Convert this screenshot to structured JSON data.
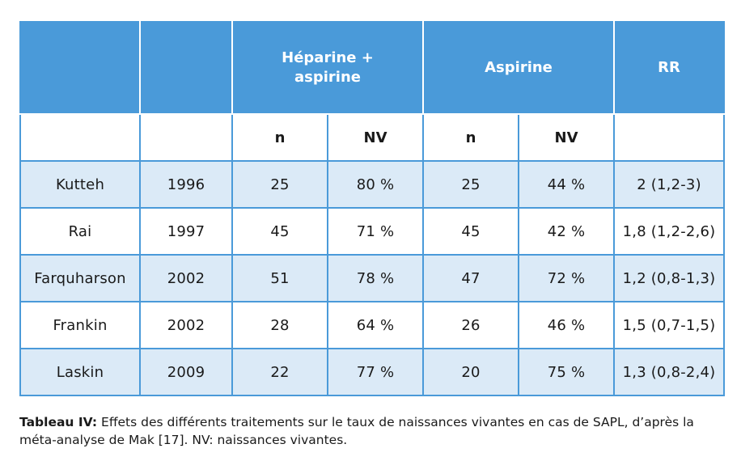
{
  "table": {
    "group_headers": [
      "",
      "",
      "Héparine +\naspirine",
      "Aspirine",
      "RR"
    ],
    "sub_headers": [
      "n",
      "NV",
      "n",
      "NV"
    ],
    "rows": [
      {
        "study": "Kutteh",
        "year": "1996",
        "hep_n": "25",
        "hep_nv": "80 %",
        "asp_n": "25",
        "asp_nv": "44 %",
        "rr": "2 (1,2-3)"
      },
      {
        "study": "Rai",
        "year": "1997",
        "hep_n": "45",
        "hep_nv": "71 %",
        "asp_n": "45",
        "asp_nv": "42 %",
        "rr": "1,8 (1,2-2,6)"
      },
      {
        "study": "Farquharson",
        "year": "2002",
        "hep_n": "51",
        "hep_nv": "78 %",
        "asp_n": "47",
        "asp_nv": "72 %",
        "rr": "1,2 (0,8-1,3)"
      },
      {
        "study": "Frankin",
        "year": "2002",
        "hep_n": "28",
        "hep_nv": "64 %",
        "asp_n": "26",
        "asp_nv": "46 %",
        "rr": "1,5 (0,7-1,5)"
      },
      {
        "study": "Laskin",
        "year": "2009",
        "hep_n": "22",
        "hep_nv": "77 %",
        "asp_n": "20",
        "asp_nv": "75 %",
        "rr": "1,3 (0,8-2,4)"
      }
    ]
  },
  "caption": {
    "lead": "Tableau IV:",
    "text": " Effets des différents traitements sur le taux de naissances vivantes en cas de SAPL, d’après la méta-analyse de Mak [17]. NV: naissances vivantes."
  },
  "colors": {
    "header_blue": "#4a9ad9",
    "row_shade": "#dbeaf7"
  }
}
